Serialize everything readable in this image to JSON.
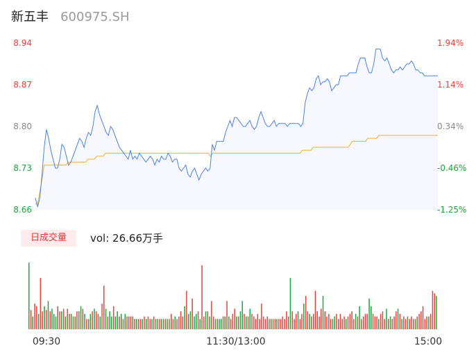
{
  "header": {
    "name": "新五丰",
    "code": "600975.SH"
  },
  "volume": {
    "tag": "日成交量",
    "text": "vol: 26.66万手"
  },
  "colors": {
    "up": "#e8413a",
    "down": "#1aa63a",
    "neutral": "#888888",
    "price_line": "#4a82e0",
    "avg_line": "#f0b030",
    "area_fill": "#f6f8fd"
  },
  "chart_data": {
    "type": "line",
    "title": "",
    "xlabel": "",
    "ylabel": "",
    "ylim": [
      8.66,
      8.94
    ],
    "left_ticks": [
      "8.94",
      "8.87",
      "8.80",
      "8.73",
      "8.66"
    ],
    "right_ticks": [
      "1.94%",
      "1.14%",
      "0.34%",
      "-0.46%",
      "-1.25%"
    ],
    "x_ticks": [
      "09:30",
      "11:30/13:00",
      "15:00"
    ],
    "x_tick_index": [
      0,
      120,
      240
    ],
    "price_change_range": [
      -1.25,
      1.94
    ],
    "series": [
      {
        "values": [
          8.68,
          8.665,
          8.68,
          8.72,
          8.765,
          8.795,
          8.78,
          8.76,
          8.745,
          8.73,
          8.73,
          8.745,
          8.77,
          8.765,
          8.75,
          8.735,
          8.74,
          8.75,
          8.76,
          8.77,
          8.78,
          8.775,
          8.765,
          8.78,
          8.79,
          8.785,
          8.8,
          8.825,
          8.835,
          8.82,
          8.81,
          8.8,
          8.79,
          8.785,
          8.8,
          8.795,
          8.785,
          8.775,
          8.765,
          8.76,
          8.755,
          8.75,
          8.745,
          8.76,
          8.745,
          8.75,
          8.745,
          8.755,
          8.75,
          8.745,
          8.74,
          8.745,
          8.75,
          8.745,
          8.735,
          8.745,
          8.74,
          8.75,
          8.745,
          8.745,
          8.755,
          8.75,
          8.74,
          8.745,
          8.745,
          8.73,
          8.725,
          8.73,
          8.735,
          8.72,
          8.715,
          8.725,
          8.73,
          8.72,
          8.71,
          8.72,
          8.725,
          8.73,
          8.725,
          8.73,
          8.77,
          8.76,
          8.775,
          8.775,
          8.775,
          8.775,
          8.79,
          8.8,
          8.81,
          8.8,
          8.815,
          8.815,
          8.81,
          8.805,
          8.8,
          8.8,
          8.805,
          8.81,
          8.8,
          8.795,
          8.8,
          8.815,
          8.825,
          8.815,
          8.805,
          8.8,
          8.8,
          8.805,
          8.81,
          8.8,
          8.805,
          8.805,
          8.805,
          8.805,
          8.8,
          8.805,
          8.805,
          8.805,
          8.805,
          8.805,
          8.8,
          8.805,
          8.84,
          8.855,
          8.865,
          8.86,
          8.865,
          8.88,
          8.885,
          8.87,
          8.875,
          8.875,
          8.88,
          8.875,
          8.86,
          8.865,
          8.87,
          8.87,
          8.885,
          8.885,
          8.885,
          8.885,
          8.89,
          8.89,
          8.89,
          8.89,
          8.905,
          8.915,
          8.915,
          8.915,
          8.9,
          8.89,
          8.89,
          8.905,
          8.93,
          8.93,
          8.93,
          8.915,
          8.91,
          8.915,
          8.905,
          8.895,
          8.89,
          8.895,
          8.895,
          8.9,
          8.895,
          8.9,
          8.905,
          8.905,
          8.91,
          8.905,
          8.895,
          8.895,
          8.89,
          8.89,
          8.885,
          8.885,
          8.885,
          8.885,
          8.885,
          8.885,
          8.885
        ],
        "color": "#4a82e0"
      },
      {
        "values": [
          8.67,
          8.67,
          8.69,
          8.71,
          8.735,
          8.735,
          8.735,
          8.735,
          8.735,
          8.735,
          8.735,
          8.735,
          8.735,
          8.735,
          8.735,
          8.74,
          8.74,
          8.74,
          8.74,
          8.74,
          8.74,
          8.74,
          8.74,
          8.74,
          8.745,
          8.745,
          8.745,
          8.745,
          8.75,
          8.75,
          8.75,
          8.75,
          8.755,
          8.755,
          8.755,
          8.755,
          8.755,
          8.755,
          8.755,
          8.755,
          8.755,
          8.755,
          8.755,
          8.755,
          8.755,
          8.755,
          8.755,
          8.755,
          8.755,
          8.755,
          8.755,
          8.755,
          8.755,
          8.755,
          8.755,
          8.755,
          8.755,
          8.755,
          8.755,
          8.755,
          8.755,
          8.755,
          8.755,
          8.755,
          8.755,
          8.755,
          8.755,
          8.755,
          8.755,
          8.755,
          8.755,
          8.755,
          8.755,
          8.755,
          8.755,
          8.755,
          8.755,
          8.755,
          8.755,
          8.755,
          8.75,
          8.755,
          8.755,
          8.755,
          8.755,
          8.755,
          8.755,
          8.755,
          8.755,
          8.755,
          8.755,
          8.755,
          8.755,
          8.755,
          8.755,
          8.755,
          8.755,
          8.755,
          8.755,
          8.755,
          8.755,
          8.755,
          8.755,
          8.755,
          8.755,
          8.755,
          8.755,
          8.755,
          8.755,
          8.755,
          8.755,
          8.755,
          8.755,
          8.755,
          8.755,
          8.755,
          8.755,
          8.755,
          8.755,
          8.755,
          8.755,
          8.755,
          8.76,
          8.76,
          8.76,
          8.76,
          8.76,
          8.765,
          8.765,
          8.765,
          8.765,
          8.765,
          8.765,
          8.765,
          8.765,
          8.765,
          8.765,
          8.765,
          8.765,
          8.765,
          8.765,
          8.765,
          8.765,
          8.765,
          8.77,
          8.775,
          8.775,
          8.775,
          8.775,
          8.775,
          8.775,
          8.775,
          8.78,
          8.78,
          8.78,
          8.78,
          8.78,
          8.785,
          8.785,
          8.785,
          8.785,
          8.785,
          8.785,
          8.785,
          8.785,
          8.785,
          8.785,
          8.785,
          8.785,
          8.785,
          8.785,
          8.785,
          8.785,
          8.785,
          8.785,
          8.785,
          8.785,
          8.785,
          8.785,
          8.785,
          8.785,
          8.785,
          8.785,
          8.785,
          8.785
        ],
        "color": "#f0b030"
      }
    ],
    "volume_values": [
      52,
      15,
      10,
      20,
      18,
      12,
      40,
      14,
      18,
      15,
      22,
      14,
      16,
      12,
      10,
      18,
      14,
      14,
      16,
      10,
      16,
      12,
      12,
      10,
      10,
      14,
      14,
      18,
      16,
      12,
      8,
      8,
      12,
      14,
      16,
      14,
      12,
      10,
      20,
      34,
      16,
      10,
      14,
      10,
      18,
      10,
      14,
      10,
      12,
      8,
      12,
      10,
      10,
      10,
      10,
      8,
      8,
      8,
      8,
      8,
      10,
      8,
      10,
      8,
      8,
      10,
      8,
      8,
      8,
      8,
      8,
      8,
      8,
      8,
      12,
      8,
      10,
      8,
      10,
      14,
      10,
      18,
      30,
      12,
      14,
      24,
      10,
      12,
      14,
      8,
      50,
      10,
      14,
      14,
      10,
      22,
      10,
      8,
      8,
      8,
      8,
      10,
      10,
      22,
      10,
      8,
      12,
      16,
      10,
      10,
      14,
      22,
      12,
      10,
      10,
      16,
      12,
      10,
      8,
      12,
      8,
      20,
      10,
      8,
      10,
      8,
      8,
      8,
      8,
      8,
      8,
      8,
      10,
      8,
      14,
      10,
      40,
      14,
      8,
      12,
      14,
      8,
      12,
      20,
      26,
      14,
      12,
      10,
      12,
      30,
      14,
      10,
      16,
      26,
      14,
      10,
      12,
      8,
      8,
      10,
      12,
      8,
      12,
      8,
      10,
      8,
      10,
      12,
      14,
      8,
      12,
      10,
      18,
      8,
      10,
      12,
      12,
      24,
      18,
      12,
      10,
      10,
      8,
      12,
      14,
      8,
      16,
      8,
      10,
      8,
      10,
      14,
      16,
      12,
      8,
      10,
      8,
      10,
      8,
      10,
      8,
      8,
      10,
      12,
      14,
      18,
      8,
      10,
      10,
      12,
      30,
      28,
      26
    ],
    "volume_direction": [
      -1,
      1,
      -1,
      1,
      1,
      -1,
      1,
      1,
      -1,
      1,
      -1,
      1,
      -1,
      -1,
      -1,
      1,
      1,
      -1,
      1,
      -1,
      1,
      1,
      -1,
      1,
      -1,
      1,
      1,
      -1,
      1,
      -1,
      1,
      1,
      -1,
      1,
      -1,
      1,
      1,
      -1,
      1,
      1,
      -1,
      1,
      -1,
      -1,
      1,
      -1,
      -1,
      1,
      -1,
      1,
      -1,
      1,
      1,
      1,
      -1,
      1,
      -1,
      1,
      1,
      -1,
      1,
      -1,
      1,
      1,
      -1,
      1,
      -1,
      1,
      1,
      -1,
      1,
      -1,
      1,
      -1,
      1,
      1,
      -1,
      1,
      1,
      1,
      1,
      -1,
      1,
      1,
      -1,
      1,
      -1,
      -1,
      1,
      -1,
      1,
      1,
      -1,
      1,
      -1,
      1,
      1,
      -1,
      1,
      -1,
      -1,
      1,
      -1,
      1,
      -1,
      1,
      1,
      1,
      -1,
      1,
      -1,
      -1,
      1,
      -1,
      1,
      -1,
      1,
      1,
      1,
      1,
      1,
      1,
      1,
      1,
      1,
      1,
      -1,
      1,
      1,
      -1,
      1,
      1,
      1,
      1,
      1,
      1,
      -1,
      1,
      1,
      1,
      -1,
      1,
      1,
      -1,
      1,
      1,
      -1,
      1,
      1,
      1,
      1,
      1,
      1,
      -1,
      1,
      1,
      1,
      1,
      -1,
      -1,
      1,
      1,
      1,
      1,
      1,
      -1,
      1,
      1,
      1,
      1,
      -1,
      1,
      -1,
      1,
      1,
      1,
      1,
      -1,
      -1,
      1,
      1,
      1,
      -1,
      1,
      1,
      1,
      -1,
      1,
      -1,
      1,
      1,
      1,
      -1,
      1,
      -1,
      1,
      1,
      -1,
      1,
      1,
      1,
      -1,
      1,
      1,
      1,
      1,
      1,
      1,
      -1,
      1,
      1,
      1,
      -1,
      1,
      1,
      1,
      -1,
      1,
      -1,
      1,
      1,
      1,
      1,
      1
    ]
  }
}
